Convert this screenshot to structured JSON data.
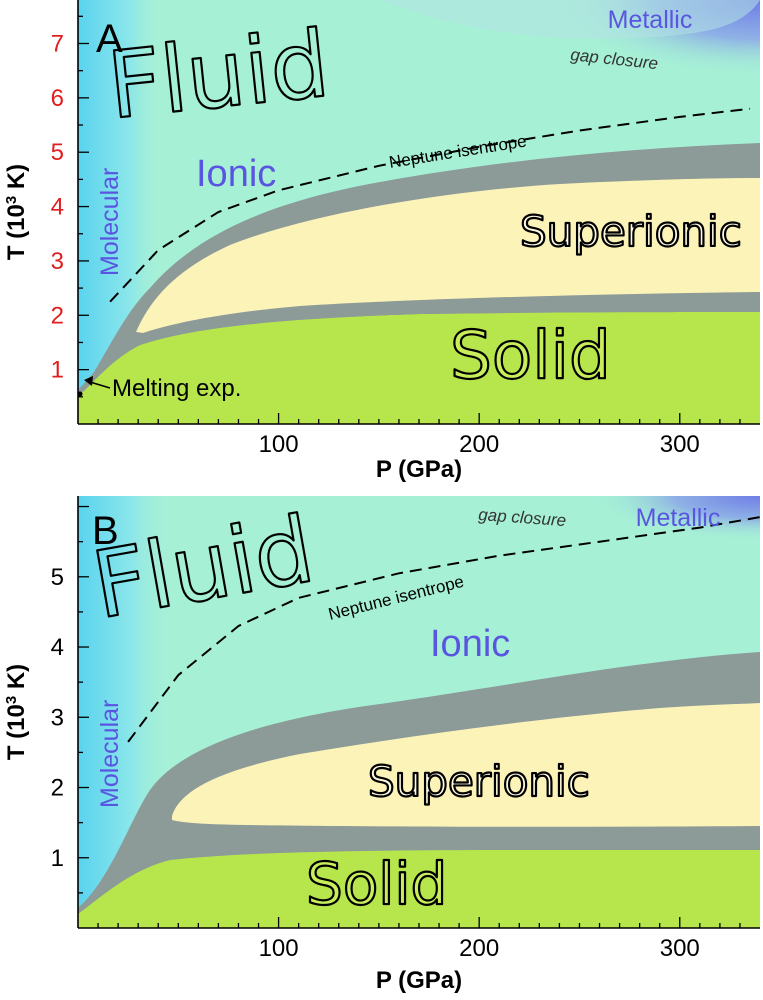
{
  "chart_data": [
    {
      "type": "area",
      "panel_label": "A",
      "xlabel": "P (GPa)",
      "ylabel": "T (10³ K)",
      "xlim": [
        0,
        340
      ],
      "ylim": [
        0,
        7.8
      ],
      "x_ticks": [
        100,
        200,
        300
      ],
      "x_tick_labels": [
        "100",
        "200",
        "300"
      ],
      "y_ticks": [
        1,
        2,
        3,
        4,
        5,
        6,
        7
      ],
      "y_tick_labels": [
        "1",
        "2",
        "3",
        "4",
        "5",
        "6",
        "7"
      ],
      "y_tick_color": "#e01e1e",
      "region_labels": [
        "Fluid",
        "Ionic",
        "Molecular",
        "Metallic",
        "Superionic",
        "Solid"
      ],
      "annotations": {
        "gap_closure": "gap closure",
        "isentrope": "Neptune isentrope",
        "melting": "Melting exp."
      },
      "series": [
        {
          "name": "Neptune isentrope",
          "style": "dashed",
          "x": [
            16,
            40,
            70,
            100,
            150,
            200,
            250,
            300,
            335
          ],
          "y": [
            2.25,
            3.2,
            3.9,
            4.3,
            4.75,
            5.1,
            5.4,
            5.65,
            5.8
          ]
        },
        {
          "name": "gap closure",
          "style": "boundary",
          "x": [
            120,
            170,
            220,
            270,
            320,
            340
          ],
          "y": [
            7.8,
            7.45,
            7.25,
            7.15,
            7.3,
            7.6
          ]
        }
      ],
      "melting_point": {
        "x": 0,
        "y": 0.38
      }
    },
    {
      "type": "area",
      "panel_label": "B",
      "xlabel": "P (GPa)",
      "ylabel": "T (10³ K)",
      "xlim": [
        0,
        340
      ],
      "ylim": [
        0,
        6.15
      ],
      "x_ticks": [
        100,
        200,
        300
      ],
      "x_tick_labels": [
        "100",
        "200",
        "300"
      ],
      "y_ticks": [
        1,
        2,
        3,
        4,
        5
      ],
      "y_tick_labels": [
        "1",
        "2",
        "3",
        "4",
        "5"
      ],
      "region_labels": [
        "Fluid",
        "Ionic",
        "Molecular",
        "Metallic",
        "Superionic",
        "Solid"
      ],
      "annotations": {
        "gap_closure": "gap closure",
        "isentrope": "Neptune isentrope"
      },
      "series": [
        {
          "name": "Neptune isentrope",
          "style": "dashed",
          "x": [
            25,
            50,
            80,
            110,
            160,
            210,
            260,
            310,
            340
          ],
          "y": [
            2.65,
            3.6,
            4.3,
            4.7,
            5.05,
            5.3,
            5.5,
            5.7,
            5.85
          ]
        }
      ]
    }
  ],
  "colors": {
    "fluid_ionic": "#a6f0d6",
    "molecular": "#5ad3ee",
    "metallic": "#6f7ee6",
    "superionic": "#fbf3b8",
    "boundary": "#8c9a98",
    "solid": "#b6e54c"
  }
}
